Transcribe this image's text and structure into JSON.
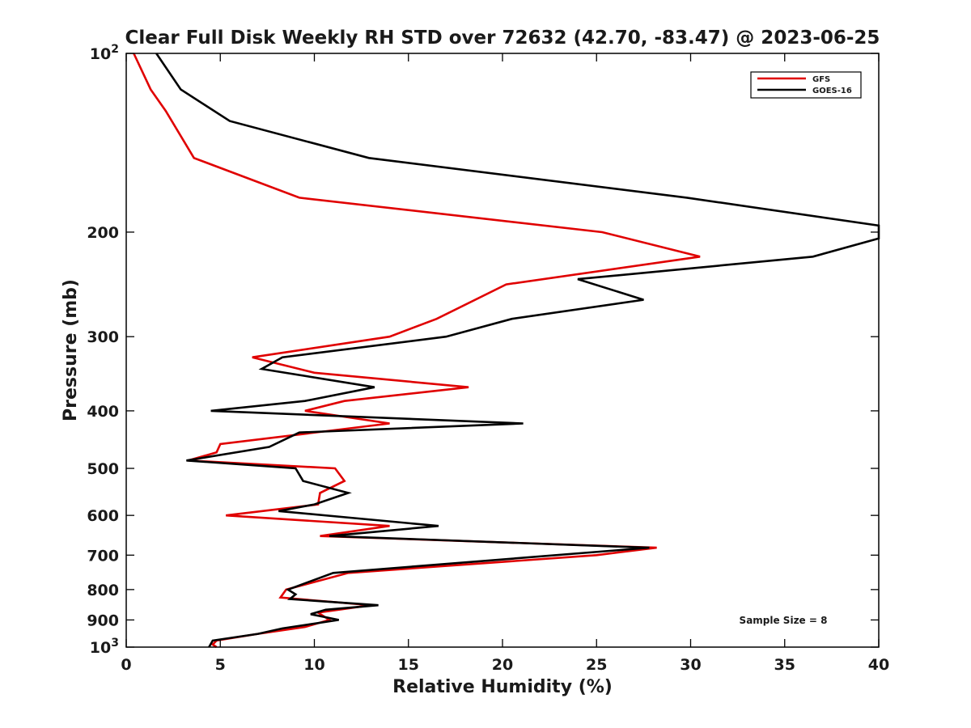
{
  "chart_data": {
    "type": "line",
    "title": "Clear Full Disk Weekly RH STD over 72632 (42.70, -83.47) @ 2023-06-25",
    "xlabel": "Relative Humidity (%)",
    "ylabel": "Pressure (mb)",
    "xlim": [
      0,
      40
    ],
    "ylim": [
      100,
      1000
    ],
    "y_scale": "log",
    "y_reversed": true,
    "grid": false,
    "legend_position": "top-right",
    "x_ticks": [
      0,
      5,
      10,
      15,
      20,
      25,
      30,
      35,
      40
    ],
    "x_tick_labels": [
      "0",
      "5",
      "10",
      "15",
      "20",
      "25",
      "30",
      "35",
      "40"
    ],
    "y_ticks": [
      100,
      200,
      300,
      400,
      500,
      600,
      700,
      800,
      900,
      1000
    ],
    "y_tick_labels": [
      {
        "base": "10",
        "exp": "2"
      },
      {
        "base": "200",
        "exp": ""
      },
      {
        "base": "300",
        "exp": ""
      },
      {
        "base": "400",
        "exp": ""
      },
      {
        "base": "500",
        "exp": ""
      },
      {
        "base": "600",
        "exp": ""
      },
      {
        "base": "700",
        "exp": ""
      },
      {
        "base": "800",
        "exp": ""
      },
      {
        "base": "900",
        "exp": ""
      },
      {
        "base": "10",
        "exp": "3"
      }
    ],
    "annotation": "Sample Size = 8",
    "series": [
      {
        "name": "GFS",
        "color": "#e00000",
        "points": [
          [
            0.4,
            100
          ],
          [
            1.3,
            115
          ],
          [
            2.1,
            125
          ],
          [
            3.6,
            150
          ],
          [
            9.2,
            175
          ],
          [
            25.3,
            200
          ],
          [
            30.5,
            220
          ],
          [
            20.2,
            245
          ],
          [
            16.5,
            280
          ],
          [
            14.0,
            300
          ],
          [
            6.7,
            325
          ],
          [
            10.0,
            345
          ],
          [
            18.2,
            365
          ],
          [
            11.6,
            385
          ],
          [
            9.5,
            400
          ],
          [
            14.0,
            420
          ],
          [
            5.0,
            455
          ],
          [
            4.8,
            470
          ],
          [
            3.3,
            485
          ],
          [
            11.1,
            500
          ],
          [
            11.6,
            525
          ],
          [
            10.3,
            550
          ],
          [
            10.2,
            575
          ],
          [
            5.3,
            600
          ],
          [
            14.0,
            625
          ],
          [
            10.3,
            650
          ],
          [
            28.2,
            680
          ],
          [
            25.0,
            700
          ],
          [
            11.8,
            750
          ],
          [
            8.5,
            800
          ],
          [
            8.2,
            825
          ],
          [
            13.0,
            850
          ],
          [
            10.2,
            875
          ],
          [
            10.8,
            900
          ],
          [
            9.5,
            925
          ],
          [
            7.0,
            950
          ],
          [
            4.8,
            975
          ],
          [
            4.6,
            990
          ],
          [
            4.8,
            1000
          ]
        ]
      },
      {
        "name": "GOES-16",
        "color": "#000000",
        "points": [
          [
            1.6,
            100
          ],
          [
            2.9,
            115
          ],
          [
            5.5,
            130
          ],
          [
            12.9,
            150
          ],
          [
            29.8,
            175
          ],
          [
            40.0,
            195
          ],
          [
            40.0,
            205
          ],
          [
            36.5,
            220
          ],
          [
            24.0,
            240
          ],
          [
            27.5,
            260
          ],
          [
            20.5,
            280
          ],
          [
            17.0,
            300
          ],
          [
            8.3,
            325
          ],
          [
            7.2,
            340
          ],
          [
            13.2,
            365
          ],
          [
            9.5,
            385
          ],
          [
            4.5,
            400
          ],
          [
            21.1,
            420
          ],
          [
            9.2,
            435
          ],
          [
            7.6,
            460
          ],
          [
            3.2,
            485
          ],
          [
            9.0,
            500
          ],
          [
            9.4,
            525
          ],
          [
            11.8,
            550
          ],
          [
            10.0,
            575
          ],
          [
            8.1,
            590
          ],
          [
            16.6,
            625
          ],
          [
            10.8,
            650
          ],
          [
            27.8,
            680
          ],
          [
            11.0,
            750
          ],
          [
            8.6,
            800
          ],
          [
            9.0,
            815
          ],
          [
            8.7,
            830
          ],
          [
            13.4,
            850
          ],
          [
            10.6,
            865
          ],
          [
            9.8,
            880
          ],
          [
            11.3,
            900
          ],
          [
            8.3,
            930
          ],
          [
            7.0,
            950
          ],
          [
            4.6,
            975
          ],
          [
            4.4,
            1000
          ]
        ]
      }
    ]
  }
}
